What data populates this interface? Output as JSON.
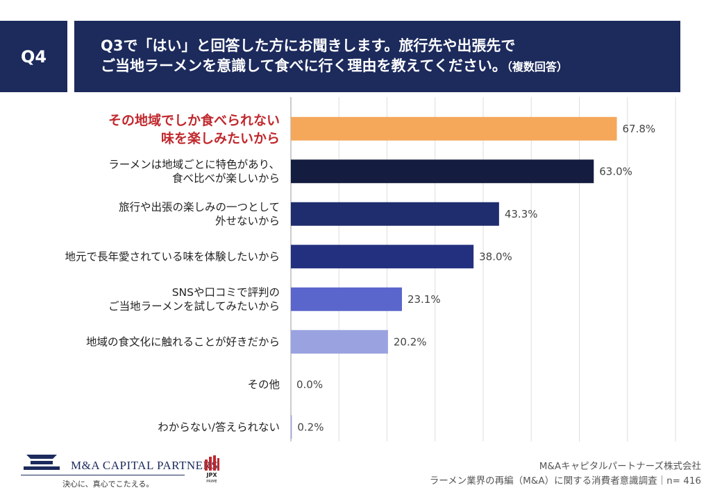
{
  "header": {
    "badge": "Q4",
    "line1": "Q3で「はい」と回答した方にお聞きします。旅行先や出張先で",
    "line2_main": "ご当地ラーメンを意識して食べに行く理由を教えてください。",
    "line2_note": "（複数回答）"
  },
  "chart_data": {
    "type": "bar",
    "orientation": "horizontal",
    "categories": [
      [
        "その地域でしか食べられない",
        "味を楽しみたいから"
      ],
      [
        "ラーメンは地域ごとに特色があり、",
        "食べ比べが楽しいから"
      ],
      [
        "旅行や出張の楽しみの一つとして",
        "外せないから"
      ],
      [
        "地元で長年愛されている味を体験したいから"
      ],
      [
        "SNSや口コミで評判の",
        "ご当地ラーメンを試してみたいから"
      ],
      [
        "地域の食文化に触れることが好きだから"
      ],
      [
        "その他"
      ],
      [
        "わからない/答えられない"
      ]
    ],
    "values": [
      67.8,
      63.0,
      43.3,
      38.0,
      23.1,
      20.2,
      0.0,
      0.2
    ],
    "value_labels": [
      "67.8%",
      "63.0%",
      "43.3%",
      "38.0%",
      "23.1%",
      "20.2%",
      "0.0%",
      "0.2%"
    ],
    "bar_colors": [
      "#f5a75a",
      "#141c3f",
      "#1f2d6e",
      "#23307f",
      "#5a66cc",
      "#9aa2e0",
      "#9aa2e0",
      "#9aa2e0"
    ],
    "highlight_index": 0,
    "highlight_color": "#c0282d",
    "xlim": [
      0,
      80
    ],
    "grid": true
  },
  "footer": {
    "logo_name": "M&A CAPITAL PARTNERS",
    "logo_tagline": "決心に、真心でこたえる。",
    "jpx": "JPX",
    "jpx_sub": "PRIME",
    "company": "M&Aキャピタルパートナーズ株式会社",
    "survey": "ラーメン業界の再編（M&A）に関する消費者意識調査｜n= 416"
  }
}
